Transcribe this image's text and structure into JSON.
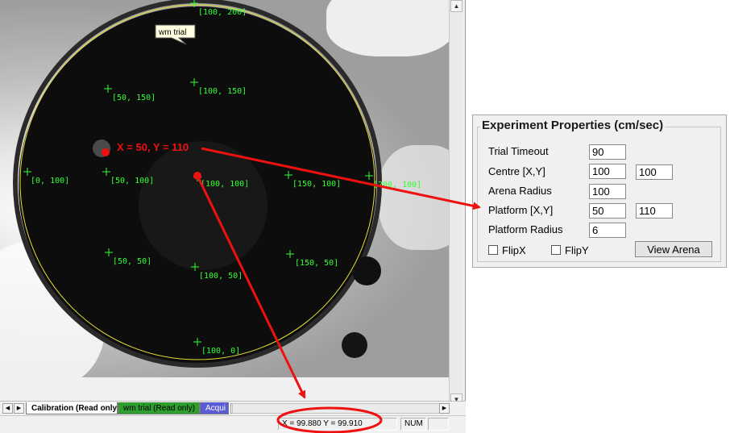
{
  "arena": {
    "trial_label": "wm trial",
    "platform_annotation": "X = 50, Y = 110",
    "calibration_points": [
      {
        "label": "[100, 200]"
      },
      {
        "label": "[50, 150]"
      },
      {
        "label": "[100, 150]"
      },
      {
        "label": "[0, 100]"
      },
      {
        "label": "[50, 100]"
      },
      {
        "label": "[100, 100]"
      },
      {
        "label": "[150, 100]"
      },
      {
        "label": "[200, 100]"
      },
      {
        "label": "[50, 50]"
      },
      {
        "label": "[100, 50]"
      },
      {
        "label": "[150, 50]"
      },
      {
        "label": "[100, 0]"
      }
    ],
    "colors": {
      "ring": "#e8e030",
      "marker": "#33ff33",
      "annotation": "#ee1111"
    }
  },
  "tabs": [
    {
      "label": "Calibration (Read only)",
      "color": "#ffffff"
    },
    {
      "label": "wm trial (Read only)",
      "color": "#2e9e2e"
    },
    {
      "label": "Acqui",
      "color": "#5b5bd6"
    }
  ],
  "status": {
    "coords": "X = 99.880  Y = 99.910",
    "num": "NUM"
  },
  "properties": {
    "title": "Experiment Properties (cm/sec)",
    "trial_timeout_label": "Trial Timeout",
    "trial_timeout": "90",
    "centre_label": "Centre [X,Y]",
    "centre_x": "100",
    "centre_y": "100",
    "arena_radius_label": "Arena Radius",
    "arena_radius": "100",
    "platform_label": "Platform [X,Y]",
    "platform_x": "50",
    "platform_y": "110",
    "platform_radius_label": "Platform Radius",
    "platform_radius": "6",
    "flipx_label": "FlipX",
    "flipy_label": "FlipY",
    "view_arena_label": "View Arena"
  }
}
